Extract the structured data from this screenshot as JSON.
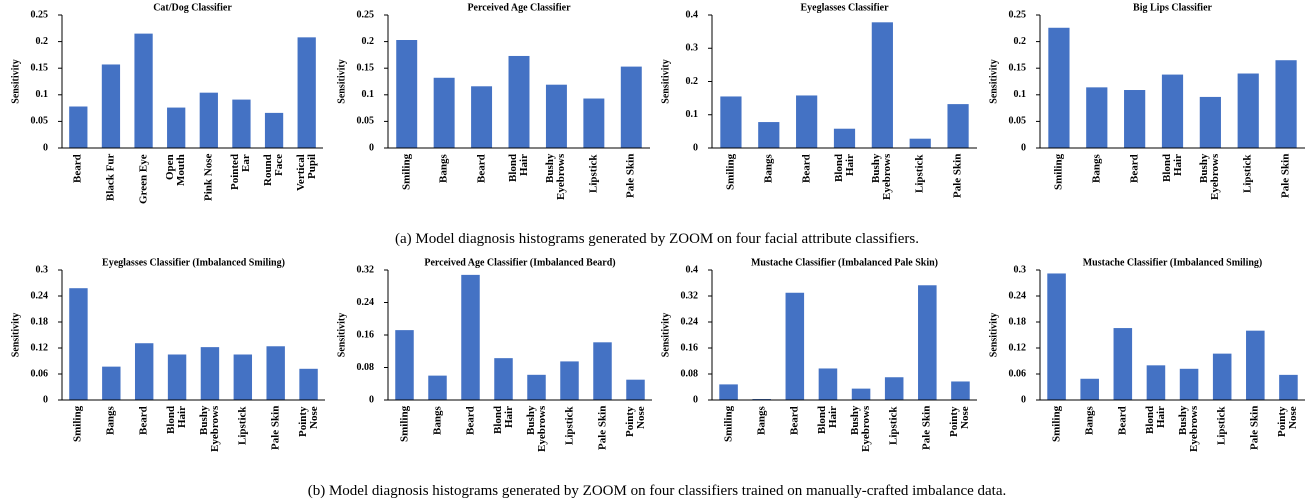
{
  "chart_data": [
    {
      "type": "bar",
      "title": "Cat/Dog Classifier",
      "y_label": "Sensitivity",
      "color": "#4472c4",
      "categories": [
        "Beard",
        "Black Fur",
        "Green Eye",
        "Open\nMouth",
        "Pink Nose",
        "Pointed\nEar",
        "Round\nFace",
        "Vertical\nPupil"
      ],
      "values": [
        0.078,
        0.157,
        0.215,
        0.076,
        0.104,
        0.091,
        0.066,
        0.208
      ],
      "ylim": [
        0,
        0.25
      ],
      "yticks": [
        0,
        0.05,
        0.1,
        0.15,
        0.2,
        0.25
      ]
    },
    {
      "type": "bar",
      "title": "Perceived Age Classifier",
      "y_label": "Sensitivity",
      "color": "#4472c4",
      "categories": [
        "Smiling",
        "Bangs",
        "Beard",
        "Blond\nHair",
        "Bushy\nEyebrows",
        "Lipstick",
        "Pale Skin"
      ],
      "values": [
        0.203,
        0.132,
        0.116,
        0.173,
        0.119,
        0.093,
        0.153
      ],
      "ylim": [
        0,
        0.25
      ],
      "yticks": [
        0,
        0.05,
        0.1,
        0.15,
        0.2,
        0.25
      ]
    },
    {
      "type": "bar",
      "title": "Eyeglasses Classifier",
      "y_label": "Sensitivity",
      "color": "#4472c4",
      "categories": [
        "Smiling",
        "Bangs",
        "Beard",
        "Blond\nHair",
        "Bushy\nEyebrows",
        "Lipstick",
        "Pale Skin"
      ],
      "values": [
        0.155,
        0.078,
        0.158,
        0.058,
        0.378,
        0.028,
        0.132
      ],
      "ylim": [
        0,
        0.4
      ],
      "yticks": [
        0,
        0.1,
        0.2,
        0.3,
        0.4
      ]
    },
    {
      "type": "bar",
      "title": "Big Lips Classifier",
      "y_label": "Sensitivity",
      "color": "#4472c4",
      "categories": [
        "Smiling",
        "Bangs",
        "Beard",
        "Blond\nHair",
        "Bushy\nEyebrows",
        "Lipstick",
        "Pale Skin"
      ],
      "values": [
        0.226,
        0.114,
        0.109,
        0.138,
        0.096,
        0.14,
        0.165
      ],
      "ylim": [
        0,
        0.25
      ],
      "yticks": [
        0,
        0.05,
        0.1,
        0.15,
        0.2,
        0.25
      ]
    },
    {
      "type": "bar",
      "title": "Eyeglasses Classifier (Imbalanced Smiling)",
      "y_label": "Sensitivity",
      "color": "#4472c4",
      "categories": [
        "Smiling",
        "Bangs",
        "Beard",
        "Blond\nHair",
        "Bushy\nEyebrows",
        "Lipstick",
        "Pale Skin",
        "Pointy\nNose"
      ],
      "values": [
        0.258,
        0.077,
        0.131,
        0.105,
        0.122,
        0.105,
        0.124,
        0.072
      ],
      "ylim": [
        0,
        0.3
      ],
      "yticks": [
        0,
        0.06,
        0.12,
        0.18,
        0.24,
        0.3
      ]
    },
    {
      "type": "bar",
      "title": "Perceived Age Classifier (Imbalanced Beard)",
      "y_label": "Sensitivity",
      "color": "#4472c4",
      "categories": [
        "Smiling",
        "Bangs",
        "Beard",
        "Blond\nHair",
        "Bushy\nEyebrows",
        "Lipstick",
        "Pale Skin",
        "Pointy\nNose"
      ],
      "values": [
        0.172,
        0.06,
        0.308,
        0.103,
        0.062,
        0.095,
        0.142,
        0.05
      ],
      "ylim": [
        0,
        0.32
      ],
      "yticks": [
        0,
        0.08,
        0.16,
        0.24,
        0.32
      ]
    },
    {
      "type": "bar",
      "title": "Mustache Classifier (Imbalanced Pale Skin)",
      "y_label": "Sensitivity",
      "color": "#4472c4",
      "categories": [
        "Smiling",
        "Bangs",
        "Beard",
        "Blond\nHair",
        "Bushy\nEyebrows",
        "Lipstick",
        "Pale Skin",
        "Pointy\nNose"
      ],
      "values": [
        0.048,
        0.003,
        0.33,
        0.097,
        0.035,
        0.07,
        0.353,
        0.057
      ],
      "ylim": [
        0,
        0.4
      ],
      "yticks": [
        0,
        0.08,
        0.16,
        0.24,
        0.32,
        0.4
      ]
    },
    {
      "type": "bar",
      "title": "Mustache Classifier (Imbalanced Smiling)",
      "y_label": "Sensitivity",
      "color": "#4472c4",
      "categories": [
        "Smiling",
        "Bangs",
        "Beard",
        "Blond\nHair",
        "Bushy\nEyebrows",
        "Lipstick",
        "Pale Skin",
        "Pointy\nNose"
      ],
      "values": [
        0.292,
        0.049,
        0.166,
        0.08,
        0.072,
        0.107,
        0.16,
        0.058
      ],
      "ylim": [
        0,
        0.3
      ],
      "yticks": [
        0,
        0.06,
        0.12,
        0.18,
        0.24,
        0.3
      ]
    }
  ],
  "captions": [
    "(a) Model diagnosis histograms generated by ZOOM on four facial attribute classifiers.",
    "(b) Model diagnosis histograms generated by ZOOM on four classifiers trained on manually-crafted imbalance data."
  ]
}
